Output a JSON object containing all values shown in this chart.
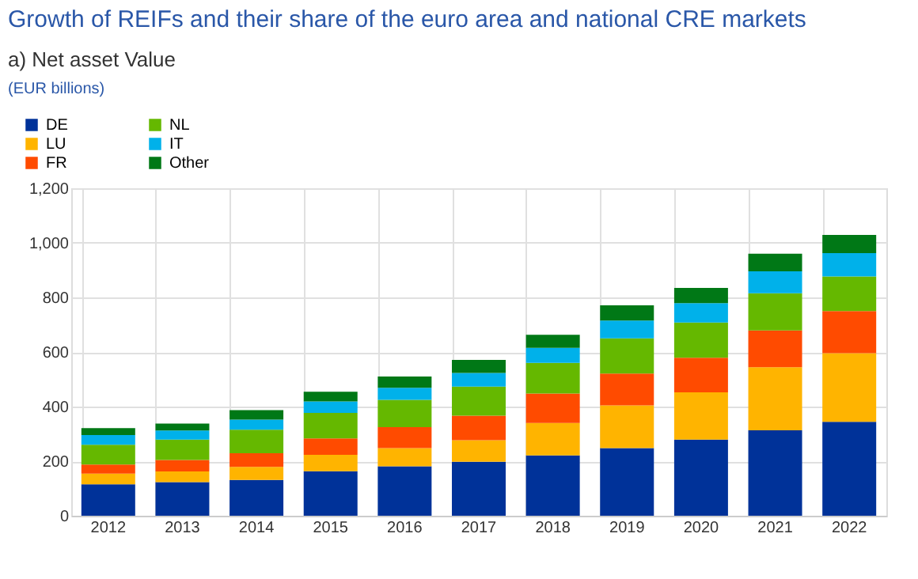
{
  "chart_data": {
    "type": "bar",
    "stacked": true,
    "title": "Growth of REIFs and their share of the euro area and national CRE markets",
    "subtitle": "a) Net asset Value",
    "annotations": [
      "(EUR billions)"
    ],
    "categories": [
      "2012",
      "2013",
      "2014",
      "2015",
      "2016",
      "2017",
      "2018",
      "2019",
      "2020",
      "2021",
      "2022"
    ],
    "series": [
      {
        "name": "DE",
        "color": "#003299",
        "values": [
          115,
          123,
          131,
          163,
          181,
          198,
          221,
          248,
          279,
          313,
          344
        ]
      },
      {
        "name": "LU",
        "color": "#ffb400",
        "values": [
          39,
          39,
          48,
          60,
          67,
          79,
          119,
          156,
          173,
          231,
          252
        ]
      },
      {
        "name": "FR",
        "color": "#ff4b00",
        "values": [
          34,
          42,
          50,
          60,
          77,
          90,
          108,
          117,
          127,
          135,
          154
        ]
      },
      {
        "name": "NL",
        "color": "#65b800",
        "values": [
          72,
          75,
          86,
          94,
          100,
          106,
          112,
          129,
          129,
          136,
          127
        ]
      },
      {
        "name": "IT",
        "color": "#00b1ea",
        "values": [
          36,
          33,
          37,
          42,
          44,
          50,
          55,
          65,
          71,
          81,
          85
        ]
      },
      {
        "name": "Other",
        "color": "#007816",
        "values": [
          25,
          26,
          35,
          35,
          41,
          48,
          48,
          56,
          56,
          64,
          67
        ]
      }
    ],
    "ylim": [
      0,
      1200
    ],
    "yticks": [
      0,
      {
        "value": 200,
        "label": "200"
      },
      {
        "value": 400,
        "label": "400"
      },
      {
        "value": 600,
        "label": "600"
      },
      {
        "value": 800,
        "label": "800"
      },
      {
        "value": 1000,
        "label": "1,000"
      },
      {
        "value": 1200,
        "label": "1,200"
      }
    ],
    "grid": true,
    "legend": "top left"
  }
}
